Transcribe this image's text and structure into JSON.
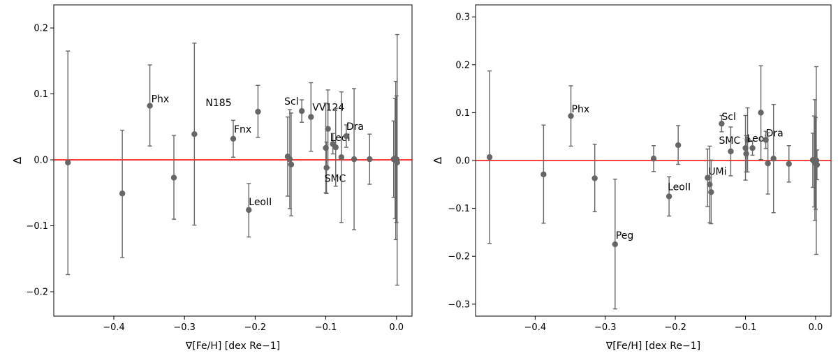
{
  "chart_data": [
    {
      "type": "scatter",
      "xlabel": "∇[Fe/H] [dex Re−1]",
      "ylabel": "Δ",
      "xlim": [
        -0.485,
        0.022
      ],
      "ylim": [
        -0.237,
        0.235
      ],
      "xticks": [
        -0.4,
        -0.3,
        -0.2,
        -0.1,
        0.0
      ],
      "xtick_labels": [
        "−0.4",
        "−0.3",
        "−0.2",
        "−0.1",
        "0.0"
      ],
      "yticks": [
        -0.2,
        -0.1,
        0.0,
        0.1,
        0.2
      ],
      "ytick_labels": [
        "−0.2",
        "−0.1",
        "0.0",
        "0.1",
        "0.2"
      ],
      "reference_line": {
        "y": 0,
        "color": "#ff0000"
      },
      "marker_color": "#666666",
      "grid": false,
      "points": [
        {
          "x": -0.465,
          "y": -0.004,
          "ylo": -0.174,
          "yhi": 0.165,
          "label": ""
        },
        {
          "x": -0.388,
          "y": -0.051,
          "ylo": -0.148,
          "yhi": 0.045,
          "label": ""
        },
        {
          "x": -0.349,
          "y": 0.082,
          "ylo": 0.021,
          "yhi": 0.144,
          "label": "Phx"
        },
        {
          "x": -0.315,
          "y": -0.027,
          "ylo": -0.09,
          "yhi": 0.037,
          "label": ""
        },
        {
          "x": -0.286,
          "y": 0.039,
          "ylo": -0.099,
          "yhi": 0.177,
          "label": ""
        },
        {
          "x": -0.231,
          "y": 0.032,
          "ylo": 0.004,
          "yhi": 0.06,
          "label": "Fnx"
        },
        {
          "x": -0.209,
          "y": -0.076,
          "ylo": -0.117,
          "yhi": -0.036,
          "label": "LeoII"
        },
        {
          "x": -0.196,
          "y": 0.073,
          "ylo": 0.034,
          "yhi": 0.113,
          "label": "N185"
        },
        {
          "x": -0.154,
          "y": 0.005,
          "ylo": -0.055,
          "yhi": 0.065,
          "label": ""
        },
        {
          "x": -0.151,
          "y": 0.001,
          "ylo": -0.074,
          "yhi": 0.076,
          "label": ""
        },
        {
          "x": -0.149,
          "y": -0.007,
          "ylo": -0.085,
          "yhi": 0.071,
          "label": ""
        },
        {
          "x": -0.134,
          "y": 0.074,
          "ylo": 0.057,
          "yhi": 0.091,
          "label": "Scl"
        },
        {
          "x": -0.121,
          "y": 0.065,
          "ylo": 0.013,
          "yhi": 0.117,
          "label": "VV124"
        },
        {
          "x": -0.1,
          "y": 0.018,
          "ylo": -0.05,
          "yhi": 0.086,
          "label": ""
        },
        {
          "x": -0.099,
          "y": -0.012,
          "ylo": -0.051,
          "yhi": 0.027,
          "label": "SMC"
        },
        {
          "x": -0.097,
          "y": 0.047,
          "ylo": -0.012,
          "yhi": 0.106,
          "label": ""
        },
        {
          "x": -0.09,
          "y": 0.024,
          "ylo": 0.009,
          "yhi": 0.04,
          "label": ""
        },
        {
          "x": -0.086,
          "y": 0.019,
          "ylo": -0.04,
          "yhi": 0.078,
          "label": "LeoI"
        },
        {
          "x": -0.078,
          "y": 0.004,
          "ylo": -0.095,
          "yhi": 0.103,
          "label": ""
        },
        {
          "x": -0.071,
          "y": 0.036,
          "ylo": 0.019,
          "yhi": 0.053,
          "label": "Dra"
        },
        {
          "x": -0.06,
          "y": 0.001,
          "ylo": -0.106,
          "yhi": 0.108,
          "label": ""
        },
        {
          "x": -0.038,
          "y": 0.001,
          "ylo": -0.037,
          "yhi": 0.039,
          "label": ""
        },
        {
          "x": -0.004,
          "y": 0.001,
          "ylo": -0.057,
          "yhi": 0.059,
          "label": ""
        },
        {
          "x": -0.002,
          "y": 0.002,
          "ylo": -0.089,
          "yhi": 0.093,
          "label": ""
        },
        {
          "x": -0.001,
          "y": -0.001,
          "ylo": -0.121,
          "yhi": 0.119,
          "label": ""
        },
        {
          "x": 0.0,
          "y": 0.001,
          "ylo": -0.095,
          "yhi": 0.097,
          "label": ""
        },
        {
          "x": 0.001,
          "y": -0.004,
          "ylo": -0.19,
          "yhi": 0.19,
          "label": ""
        }
      ]
    },
    {
      "type": "scatter",
      "xlabel": "∇[Fe/H] [dex Re−1]",
      "ylabel": "Δ",
      "xlim": [
        -0.485,
        0.022
      ],
      "ylim": [
        -0.325,
        0.325
      ],
      "xticks": [
        -0.4,
        -0.3,
        -0.2,
        -0.1,
        0.0
      ],
      "xtick_labels": [
        "−0.4",
        "−0.3",
        "−0.2",
        "−0.1",
        "0.0"
      ],
      "yticks": [
        -0.3,
        -0.2,
        -0.1,
        0.0,
        0.1,
        0.2,
        0.3
      ],
      "ytick_labels": [
        "−0.3",
        "−0.2",
        "−0.1",
        "0.0",
        "0.1",
        "0.2",
        "0.3"
      ],
      "reference_line": {
        "y": 0,
        "color": "#ff0000"
      },
      "marker_color": "#666666",
      "grid": false,
      "points": [
        {
          "x": -0.465,
          "y": 0.007,
          "ylo": -0.173,
          "yhi": 0.187,
          "label": ""
        },
        {
          "x": -0.388,
          "y": -0.029,
          "ylo": -0.131,
          "yhi": 0.074,
          "label": ""
        },
        {
          "x": -0.349,
          "y": 0.093,
          "ylo": 0.03,
          "yhi": 0.156,
          "label": "Phx"
        },
        {
          "x": -0.315,
          "y": -0.037,
          "ylo": -0.107,
          "yhi": 0.034,
          "label": ""
        },
        {
          "x": -0.286,
          "y": -0.175,
          "ylo": -0.31,
          "yhi": -0.039,
          "label": "Peg"
        },
        {
          "x": -0.231,
          "y": 0.004,
          "ylo": -0.023,
          "yhi": 0.031,
          "label": ""
        },
        {
          "x": -0.209,
          "y": -0.075,
          "ylo": -0.116,
          "yhi": -0.034,
          "label": "LeoII"
        },
        {
          "x": -0.196,
          "y": 0.032,
          "ylo": -0.008,
          "yhi": 0.073,
          "label": ""
        },
        {
          "x": -0.154,
          "y": -0.036,
          "ylo": -0.096,
          "yhi": 0.024,
          "label": ""
        },
        {
          "x": -0.151,
          "y": -0.05,
          "ylo": -0.13,
          "yhi": 0.03,
          "label": "UMi"
        },
        {
          "x": -0.149,
          "y": -0.066,
          "ylo": -0.132,
          "yhi": 0.001,
          "label": ""
        },
        {
          "x": -0.134,
          "y": 0.077,
          "ylo": 0.06,
          "yhi": 0.094,
          "label": "Scl"
        },
        {
          "x": -0.121,
          "y": 0.019,
          "ylo": -0.032,
          "yhi": 0.07,
          "label": ""
        },
        {
          "x": -0.1,
          "y": 0.026,
          "ylo": -0.041,
          "yhi": 0.094,
          "label": "SMC"
        },
        {
          "x": -0.099,
          "y": 0.014,
          "ylo": -0.024,
          "yhi": 0.052,
          "label": ""
        },
        {
          "x": -0.097,
          "y": 0.043,
          "ylo": -0.024,
          "yhi": 0.11,
          "label": ""
        },
        {
          "x": -0.09,
          "y": 0.026,
          "ylo": 0.011,
          "yhi": 0.041,
          "label": "LeoI"
        },
        {
          "x": -0.078,
          "y": 0.1,
          "ylo": 0.002,
          "yhi": 0.198,
          "label": ""
        },
        {
          "x": -0.071,
          "y": 0.043,
          "ylo": 0.025,
          "yhi": 0.061,
          "label": "Dra"
        },
        {
          "x": -0.068,
          "y": -0.006,
          "ylo": -0.07,
          "yhi": 0.058,
          "label": ""
        },
        {
          "x": -0.06,
          "y": 0.004,
          "ylo": -0.109,
          "yhi": 0.117,
          "label": ""
        },
        {
          "x": -0.038,
          "y": -0.007,
          "ylo": -0.045,
          "yhi": 0.031,
          "label": ""
        },
        {
          "x": -0.004,
          "y": 0.001,
          "ylo": -0.056,
          "yhi": 0.057,
          "label": ""
        },
        {
          "x": -0.002,
          "y": -0.002,
          "ylo": -0.097,
          "yhi": 0.093,
          "label": ""
        },
        {
          "x": -0.001,
          "y": 0.001,
          "ylo": -0.125,
          "yhi": 0.127,
          "label": ""
        },
        {
          "x": 0.0,
          "y": -0.006,
          "ylo": -0.102,
          "yhi": 0.09,
          "label": ""
        },
        {
          "x": 0.001,
          "y": 0.0,
          "ylo": -0.196,
          "yhi": 0.196,
          "label": ""
        },
        {
          "x": 0.002,
          "y": -0.009,
          "ylo": -0.04,
          "yhi": 0.022,
          "label": ""
        }
      ]
    }
  ]
}
